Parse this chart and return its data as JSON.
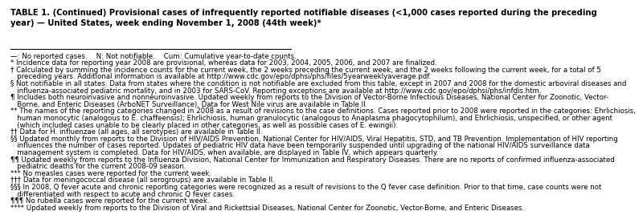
{
  "title_line1": "TABLE 1. (Continued) Provisional cases of infrequently reported notifiable diseases (<1,000 cases reported during the preceding",
  "title_line2": "year) — United States, week ending November 1, 2008 (44th week)*",
  "footnotes": [
    "—: No reported cases.    N: Not notifiable.    Cum: Cumulative year-to-date counts.",
    "* Incidence data for reporting year 2008 are provisional, whereas data for 2003, 2004, 2005, 2006, and 2007 are finalized.",
    "† Calculated by summing the incidence counts for the current week, the 2 weeks preceding the current week, and the 2 weeks following the current week, for a total of 5",
    "   preceding years. Additional information is available at http://www.cdc.gov/epo/dphsi/phs/files/5yearweeklyaverage.pdf.",
    "§ Not notifiable in all states. Data from states where the condition is not notifiable are excluded from this table, except in 2007 and 2008 for the domestic arboviral diseases and",
    "   influenza-associated pediatric mortality, and in 2003 for SARS-CoV. Reporting exceptions are available at http://www.cdc.gov/epo/dphsi/phs/infdis.htm.",
    "¶ Includes both neuroinvasive and nonneuroinvasive. Updated weekly from reports to the Division of Vector-Borne Infectious Diseases, National Center for Zoonotic, Vector-",
    "   Borne, and Enteric Diseases (ArboNET Surveillance). Data for West Nile virus are available in Table II.",
    "** The names of the reporting categories changed in 2008 as a result of revisions to the case definitions. Cases reported prior to 2008 were reported in the categories: Ehrlichiosis,",
    "   human monocytic (analogous to E. chaffeensis); Ehrlichiosis, human granulocytic (analogous to Anaplasma phagocytophilum), and Ehrlichiosis, unspecified, or other agent",
    "   (which included cases unable to be clearly placed in other categories, as well as possible cases of E. ewingii).",
    "†† Data for H. influenzae (all ages, all serotypes) are available in Table II.",
    "§§ Updated monthly from reports to the Division of HIV/AIDS Prevention, National Center for HIV/AIDS, Viral Hepatitis, STD, and TB Prevention. Implementation of HIV reporting",
    "   influences the number of cases reported. Updates of pediatric HIV data have been temporarily suspended until upgrading of the national HIV/AIDS surveillance data",
    "   management system is completed. Data for HIV/AIDS, when available, are displayed in Table IV, which appears quarterly.",
    "¶¶ Updated weekly from reports to the Influenza Division, National Center for Immunization and Respiratory Diseases. There are no reports of confirmed influenza-associated",
    "   pediatric deaths for the current 2008-09 season.",
    "*** No measles cases were reported for the current week.",
    "††† Data for meningococcal disease (all serogroups) are available in Table II.",
    "§§§ In 2008, Q fever acute and chronic reporting categories were recognized as a result of revisions to the Q fever case definition. Prior to that time, case counts were not",
    "   differentiated with respect to acute and chronic Q fever cases.",
    "¶¶¶ No rubella cases were reported for the current week.",
    "**** Updated weekly from reports to the Division of Viral and Rickettsial Diseases, National Center for Zoonotic, Vector-Borne, and Enteric Diseases."
  ],
  "bg_color": "#ffffff",
  "text_color": "#000000",
  "title_fontsize": 7.2,
  "footnote_fontsize": 6.2
}
